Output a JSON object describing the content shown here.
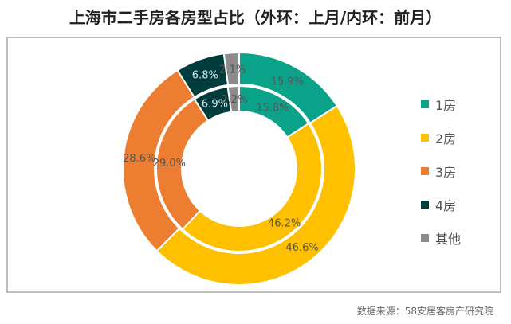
{
  "title": "上海市二手房各房型占比（外环：上月/内环：前月）",
  "source": "数据来源：58安居客房产研究院",
  "chart_data": {
    "type": "pie",
    "subtype": "double-donut",
    "title": "上海市二手房各房型占比（外环：上月/内环：前月）",
    "categories": [
      "1房",
      "2房",
      "3房",
      "4房",
      "其他"
    ],
    "colors": [
      "#0aa38a",
      "#ffc000",
      "#ed7d31",
      "#003c3c",
      "#8c8c8c"
    ],
    "series": [
      {
        "name": "外环：上月",
        "values": [
          15.9,
          46.6,
          28.6,
          6.8,
          2.1
        ]
      },
      {
        "name": "内环：前月",
        "values": [
          15.8,
          46.2,
          29.0,
          6.9,
          2.2
        ]
      }
    ],
    "legend_position": "right"
  },
  "legend": {
    "items": [
      {
        "label": "1房",
        "color": "#0aa38a"
      },
      {
        "label": "2房",
        "color": "#ffc000"
      },
      {
        "label": "3房",
        "color": "#ed7d31"
      },
      {
        "label": "4房",
        "color": "#003c3c"
      },
      {
        "label": "其他",
        "color": "#8c8c8c"
      }
    ]
  }
}
